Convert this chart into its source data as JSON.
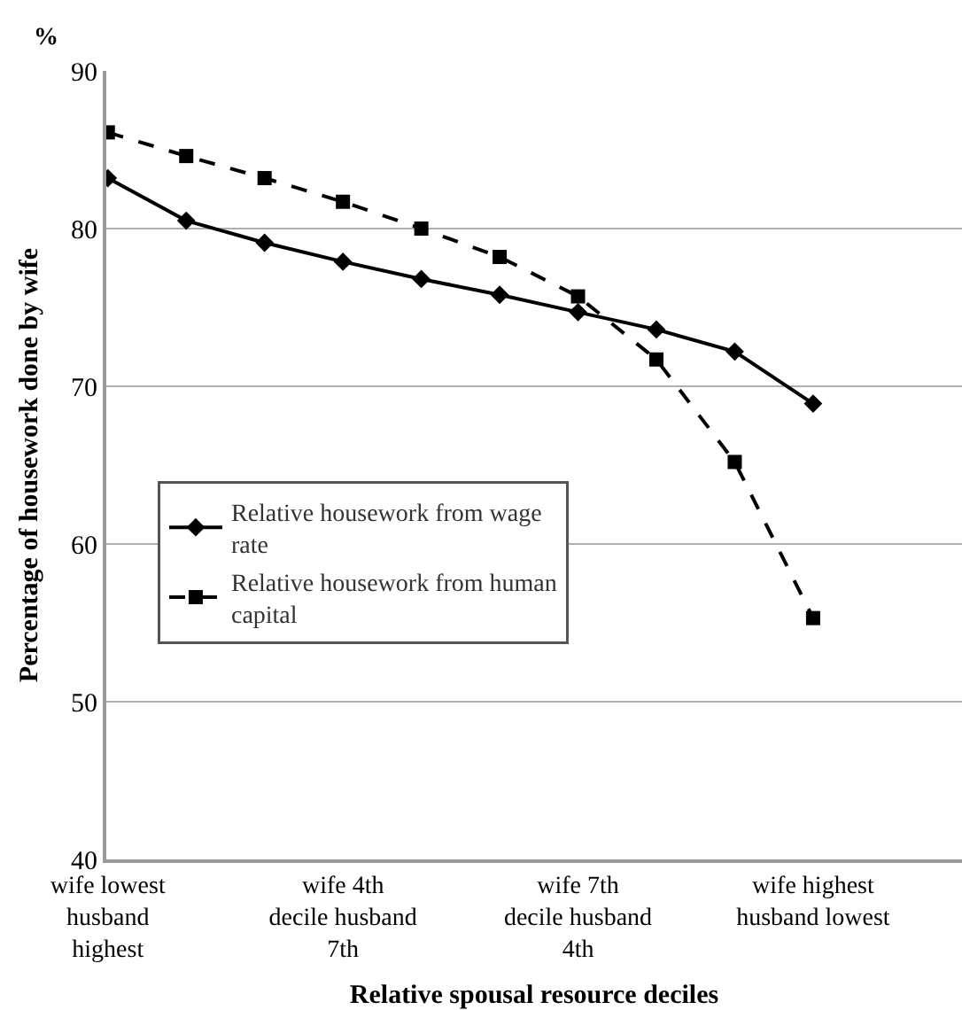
{
  "chart_data": {
    "type": "line",
    "xlabel": "Relative spousal resource deciles",
    "ylabel": "Percentage of housework done by wife",
    "annotations": [
      "%"
    ],
    "categories": [
      "wife lowest husband highest",
      null,
      null,
      "wife 4th decile husband 7th",
      null,
      null,
      "wife 7th decile husband 4th",
      null,
      null,
      "wife highest husband lowest"
    ],
    "series": [
      {
        "name": "Relative housework from wage rate",
        "color": "#000000",
        "marker": "diamond",
        "line_style": "solid",
        "values": [
          83.2,
          80.5,
          79.1,
          77.9,
          76.8,
          75.8,
          74.7,
          73.6,
          72.2,
          68.9
        ]
      },
      {
        "name": "Relative housework from human capital",
        "color": "#000000",
        "marker": "square",
        "line_style": "dashed",
        "values": [
          86.1,
          84.6,
          83.2,
          81.7,
          80.0,
          78.2,
          75.7,
          71.7,
          65.2,
          55.3
        ]
      }
    ],
    "ylim": [
      40,
      90
    ],
    "yticks": [
      40,
      50,
      60,
      70,
      80,
      90
    ],
    "grid": "y",
    "legend": "left"
  }
}
